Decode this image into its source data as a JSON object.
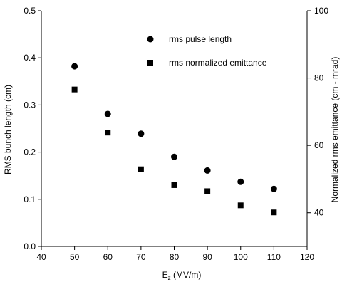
{
  "chart_data": {
    "type": "scatter",
    "xlabel_main": "E",
    "xlabel_sub": "z",
    "xlabel_unit": " (MV/m)",
    "ylabel_left": "RMS bunch length (cm)",
    "ylabel_right": "Normalized rms emittance (cm - mrad)",
    "xlim": [
      40,
      120
    ],
    "ylim_left": [
      0.0,
      0.5
    ],
    "ylim_right": [
      30,
      100
    ],
    "x_ticks": [
      40,
      50,
      60,
      70,
      80,
      90,
      100,
      110,
      120
    ],
    "y_left_ticks": [
      "0.0",
      "0.1",
      "0.2",
      "0.3",
      "0.4",
      "0.5"
    ],
    "y_right_ticks": [
      40,
      60,
      80,
      100
    ],
    "grid": false,
    "legend_position": "top-right",
    "series": [
      {
        "name": "rms pulse length",
        "marker": "circle",
        "axis": "left",
        "color": "#000000",
        "x": [
          50,
          60,
          70,
          80,
          90,
          100,
          110
        ],
        "y": [
          0.382,
          0.281,
          0.239,
          0.19,
          0.161,
          0.137,
          0.122
        ]
      },
      {
        "name": "rms normalized emittance",
        "marker": "square",
        "axis": "right",
        "color": "#000000",
        "x": [
          50,
          60,
          70,
          80,
          90,
          100,
          110
        ],
        "y": [
          76.6,
          63.8,
          52.9,
          48.2,
          46.4,
          42.2,
          40.1
        ]
      }
    ]
  }
}
